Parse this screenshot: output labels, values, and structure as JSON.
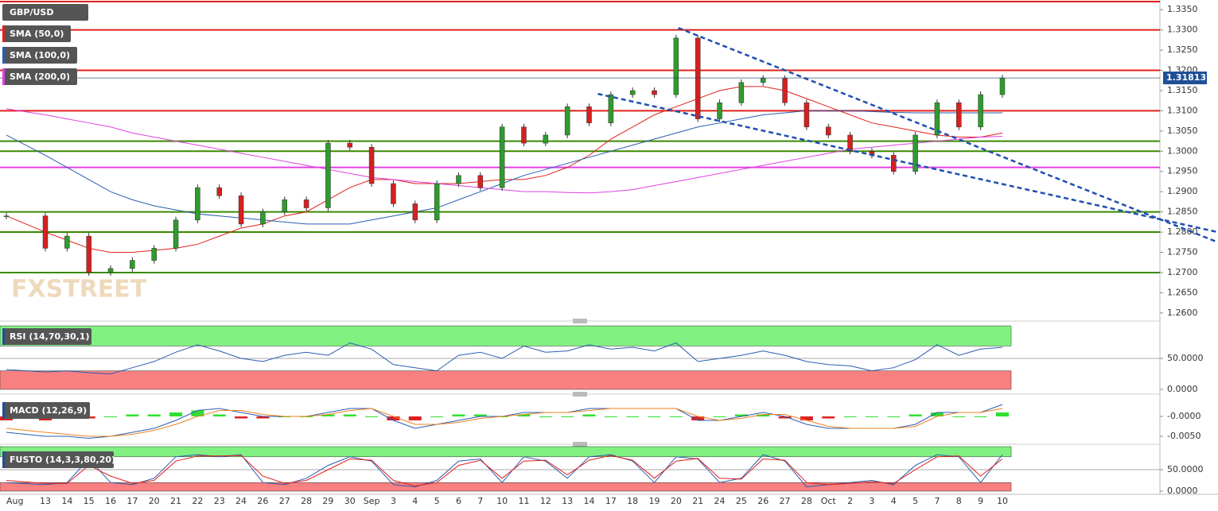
{
  "chart_data": {
    "type": "candlestick",
    "title": "GBP/USD",
    "watermark": "FXSTREET",
    "categories": [
      "Aug",
      "13",
      "14",
      "15",
      "16",
      "17",
      "20",
      "21",
      "22",
      "23",
      "24",
      "26",
      "27",
      "28",
      "29",
      "30",
      "Sep",
      "3",
      "4",
      "5",
      "6",
      "7",
      "10",
      "11",
      "12",
      "13",
      "14",
      "17",
      "18",
      "19",
      "20",
      "21",
      "24",
      "25",
      "26",
      "27",
      "28",
      "Oct",
      "2",
      "3",
      "4",
      "5",
      "7",
      "8",
      "9",
      "10"
    ],
    "closes": [
      1.284,
      1.276,
      1.279,
      1.27,
      1.271,
      1.273,
      1.276,
      1.283,
      1.291,
      1.289,
      1.282,
      1.285,
      1.288,
      1.286,
      1.302,
      1.301,
      1.292,
      1.287,
      1.283,
      1.292,
      1.294,
      1.291,
      1.306,
      1.302,
      1.304,
      1.311,
      1.307,
      1.314,
      1.315,
      1.314,
      1.328,
      1.308,
      1.312,
      1.317,
      1.318,
      1.312,
      1.306,
      1.304,
      1.3,
      1.299,
      1.295,
      1.304,
      1.312,
      1.306,
      1.314,
      1.3181
    ],
    "up_color": "#2e9b2e",
    "down_color": "#d62020",
    "last_price": 1.31813,
    "ylim": [
      1.258,
      1.3374
    ],
    "yticks": [
      {
        "value": 1.335,
        "label": "1.3350"
      },
      {
        "value": 1.33,
        "label": "1.3300"
      },
      {
        "value": 1.325,
        "label": "1.3250"
      },
      {
        "value": 1.32,
        "label": "1.3200"
      },
      {
        "value": 1.315,
        "label": "1.3150"
      },
      {
        "value": 1.31,
        "label": "1.3100"
      },
      {
        "value": 1.305,
        "label": "1.3050"
      },
      {
        "value": 1.3,
        "label": "1.3000"
      },
      {
        "value": 1.295,
        "label": "1.2950"
      },
      {
        "value": 1.29,
        "label": "1.2900"
      },
      {
        "value": 1.285,
        "label": "1.2850"
      },
      {
        "value": 1.28,
        "label": "1.2800"
      },
      {
        "value": 1.275,
        "label": "1.2750"
      },
      {
        "value": 1.27,
        "label": "1.2700"
      },
      {
        "value": 1.265,
        "label": "1.2650"
      },
      {
        "value": 1.26,
        "label": "1.2600"
      }
    ],
    "series": [
      {
        "name": "SMA (50,0)",
        "color": "#e0201c",
        "values": [
          1.284,
          1.28,
          1.278,
          1.276,
          1.275,
          1.275,
          1.2755,
          1.276,
          1.277,
          1.279,
          1.281,
          1.282,
          1.284,
          1.285,
          1.288,
          1.291,
          1.293,
          1.293,
          1.292,
          1.292,
          1.292,
          1.2925,
          1.293,
          1.293,
          1.294,
          1.296,
          1.299,
          1.303,
          1.306,
          1.309,
          1.311,
          1.313,
          1.315,
          1.316,
          1.316,
          1.315,
          1.313,
          1.311,
          1.309,
          1.307,
          1.306,
          1.305,
          1.304,
          1.3035,
          1.3035,
          1.3045
        ]
      },
      {
        "name": "SMA (100,0)",
        "color": "#2a5db0",
        "values": [
          1.304,
          1.299,
          1.296,
          1.293,
          1.29,
          1.288,
          1.2865,
          1.2855,
          1.2845,
          1.284,
          1.2835,
          1.283,
          1.2825,
          1.282,
          1.282,
          1.282,
          1.283,
          1.284,
          1.285,
          1.286,
          1.288,
          1.29,
          1.292,
          1.294,
          1.2955,
          1.297,
          1.2985,
          1.3,
          1.3015,
          1.303,
          1.3045,
          1.306,
          1.307,
          1.308,
          1.309,
          1.3095,
          1.31,
          1.31,
          1.31,
          1.3098,
          1.3096,
          1.3095,
          1.3095,
          1.3095,
          1.3095,
          1.3095
        ]
      },
      {
        "name": "SMA (200,0)",
        "color": "#e040e0",
        "values": [
          1.3105,
          1.309,
          1.308,
          1.307,
          1.306,
          1.3045,
          1.3035,
          1.3025,
          1.3015,
          1.3005,
          1.2995,
          1.2985,
          1.2975,
          1.2965,
          1.2955,
          1.2945,
          1.2935,
          1.293,
          1.2925,
          1.292,
          1.2915,
          1.291,
          1.2905,
          1.29,
          1.29,
          1.2898,
          1.2897,
          1.29,
          1.2905,
          1.2915,
          1.2925,
          1.2935,
          1.2945,
          1.2955,
          1.2965,
          1.2975,
          1.2985,
          1.2995,
          1.3005,
          1.301,
          1.3015,
          1.302,
          1.3025,
          1.303,
          1.3035,
          1.3037
        ]
      }
    ],
    "levels": [
      {
        "value": 1.337,
        "color": "#e0201c"
      },
      {
        "value": 1.33,
        "color": "#e0201c"
      },
      {
        "value": 1.32,
        "color": "#e0201c"
      },
      {
        "value": 1.31,
        "color": "#e0201c"
      },
      {
        "value": 1.3025,
        "color": "#3a8a00"
      },
      {
        "value": 1.3,
        "color": "#3a8a00"
      },
      {
        "value": 1.296,
        "color": "#e040e0"
      },
      {
        "value": 1.285,
        "color": "#3a8a00"
      },
      {
        "value": 1.28,
        "color": "#3a8a00"
      },
      {
        "value": 1.27,
        "color": "#3a8a00"
      }
    ],
    "trendlines": [
      {
        "x": [
          30.1,
          54.9
        ],
        "values": [
          1.3305,
          1.2775
        ],
        "color": "#1f4fb0"
      },
      {
        "x": [
          26.4,
          54.9
        ],
        "values": [
          1.3142,
          1.28
        ],
        "color": "#1f4fb0"
      }
    ],
    "rsi": {
      "name": "RSI (14,70,30,1)",
      "color": "#2a5db0",
      "ylim": [
        0,
        100
      ],
      "bands": [
        70,
        30
      ],
      "yticks": [
        {
          "value": 50,
          "label": "50.0000"
        },
        {
          "value": 0,
          "label": "0.0000"
        }
      ],
      "values": [
        32,
        28,
        30,
        27,
        25,
        35,
        45,
        60,
        72,
        62,
        50,
        45,
        55,
        60,
        55,
        75,
        65,
        40,
        35,
        30,
        55,
        60,
        50,
        70,
        60,
        62,
        72,
        65,
        68,
        62,
        75,
        45,
        50,
        55,
        62,
        55,
        45,
        40,
        38,
        30,
        35,
        48,
        72,
        55,
        65,
        68
      ]
    },
    "macd": {
      "name": "MACD (12,26,9)",
      "ylim": [
        -0.0072,
        0.0048
      ],
      "yticks": [
        {
          "value": 0,
          "label": "-0.0000"
        },
        {
          "value": -0.005,
          "label": "-0.0050"
        }
      ],
      "series": [
        {
          "color": "#2a5db0",
          "values": [
            -0.004,
            -0.005,
            -0.005,
            -0.0055,
            -0.005,
            -0.004,
            -0.003,
            -0.001,
            0.0015,
            0.002,
            0.001,
            0,
            0,
            0,
            0.001,
            0.002,
            0.002,
            -0.001,
            -0.003,
            -0.002,
            -0.001,
            0,
            0,
            0.001,
            0.001,
            0.001,
            0.002,
            0.002,
            0.002,
            0.002,
            0.002,
            -0.001,
            -0.001,
            0,
            0.001,
            0,
            -0.002,
            -0.003,
            -0.003,
            -0.003,
            -0.003,
            -0.002,
            0.001,
            0.001,
            0.001,
            0.003
          ]
        },
        {
          "color": "#f08020",
          "values": [
            -0.003,
            -0.004,
            -0.0045,
            -0.005,
            -0.005,
            -0.0045,
            -0.0035,
            -0.002,
            0,
            0.0015,
            0.0015,
            0.0005,
            0,
            0,
            0.0005,
            0.0015,
            0.002,
            0,
            -0.002,
            -0.002,
            -0.0015,
            -0.0005,
            0,
            0.0005,
            0.001,
            0.001,
            0.0015,
            0.002,
            0.002,
            0.002,
            0.002,
            0,
            -0.001,
            -0.0005,
            0.0005,
            0.0005,
            -0.001,
            -0.0025,
            -0.003,
            -0.003,
            -0.003,
            -0.0025,
            0,
            0.001,
            0.001,
            0.002
          ]
        }
      ],
      "histogram": [
        -0.001,
        -0.001,
        -0.0005,
        -0.0005,
        0,
        0.0005,
        0.0005,
        0.001,
        0.0015,
        0.0005,
        -0.0005,
        -0.0005,
        0,
        0,
        0.0005,
        0.0005,
        0,
        -0.001,
        -0.001,
        0,
        0.0005,
        0.0005,
        0,
        0.0005,
        0,
        0,
        0.0005,
        0,
        0,
        0,
        0,
        -0.001,
        0,
        0.0005,
        0.0005,
        -0.0005,
        -0.001,
        -0.0005,
        0,
        0,
        0,
        0.0005,
        0.001,
        0,
        0,
        0.001
      ],
      "up_color": "#30e030",
      "down_color": "#e02020"
    },
    "stoch": {
      "name": "FUSTO (14,3,3,80,20)",
      "ylim": [
        0,
        100
      ],
      "bands": [
        80,
        20
      ],
      "yticks": [
        {
          "value": 50,
          "label": "50.0000"
        },
        {
          "value": 0,
          "label": "0.0000"
        }
      ],
      "series": [
        {
          "color": "#2a5db0",
          "values": [
            20,
            15,
            20,
            75,
            20,
            15,
            30,
            80,
            85,
            80,
            85,
            20,
            15,
            30,
            60,
            80,
            70,
            15,
            10,
            25,
            70,
            75,
            20,
            80,
            70,
            30,
            80,
            85,
            70,
            20,
            80,
            75,
            20,
            30,
            85,
            70,
            10,
            15,
            20,
            25,
            15,
            60,
            85,
            80,
            20,
            85
          ]
        },
        {
          "color": "#e0201c",
          "values": [
            25,
            18,
            18,
            60,
            35,
            18,
            25,
            70,
            82,
            82,
            83,
            35,
            18,
            25,
            50,
            75,
            72,
            25,
            12,
            20,
            60,
            72,
            30,
            70,
            72,
            38,
            72,
            83,
            72,
            30,
            70,
            76,
            30,
            28,
            75,
            72,
            20,
            15,
            18,
            22,
            18,
            50,
            80,
            82,
            35,
            75
          ]
        }
      ]
    }
  }
}
